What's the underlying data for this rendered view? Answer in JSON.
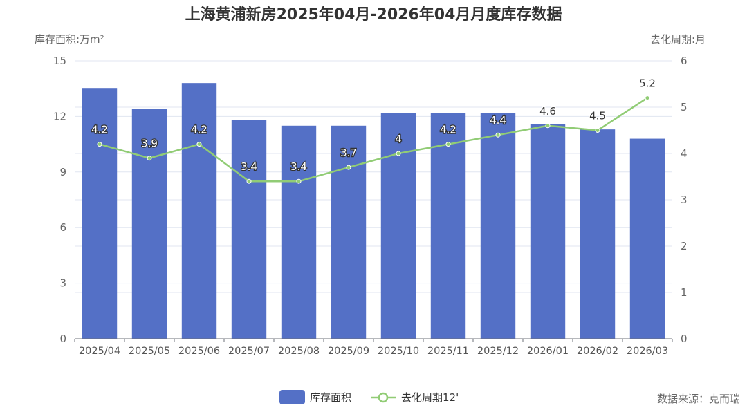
{
  "chart_data": {
    "type": "bar+line",
    "title": "上海黄浦新房2025年04月-2026年04月月度库存数据",
    "categories": [
      "2025/04",
      "2025/05",
      "2025/06",
      "2025/07",
      "2025/08",
      "2025/09",
      "2025/10",
      "2025/11",
      "2025/12",
      "2026/01",
      "2026/02",
      "2026/03"
    ],
    "ylabel_left": "库存面积:万m²",
    "ylabel_right": "去化周期:月",
    "ylim_left": [
      0,
      15
    ],
    "yticks_left": [
      0,
      3,
      6,
      9,
      12,
      15
    ],
    "ylim_right": [
      0,
      6
    ],
    "yticks_right": [
      0,
      1,
      2,
      3,
      4,
      5,
      6
    ],
    "grid": true,
    "series": [
      {
        "name": "库存面积",
        "type": "bar",
        "axis": "left",
        "color": "#5470c6",
        "values": [
          13.5,
          12.4,
          13.8,
          11.8,
          11.5,
          11.5,
          12.2,
          12.2,
          12.2,
          11.6,
          11.3,
          10.8
        ]
      },
      {
        "name": "去化周期12'",
        "type": "line",
        "axis": "right",
        "color": "#91cc75",
        "values": [
          4.2,
          3.9,
          4.2,
          3.4,
          3.4,
          3.7,
          4,
          4.2,
          4.4,
          4.6,
          4.5,
          5.2
        ],
        "labels": [
          "4.2",
          "3.9",
          "4.2",
          "3.4",
          "3.4",
          "3.7",
          "4",
          "4.2",
          "4.4",
          "4.6",
          "4.5",
          "5.2"
        ]
      }
    ],
    "legend_position": "bottom-center",
    "source": "数据来源：克而瑞"
  }
}
